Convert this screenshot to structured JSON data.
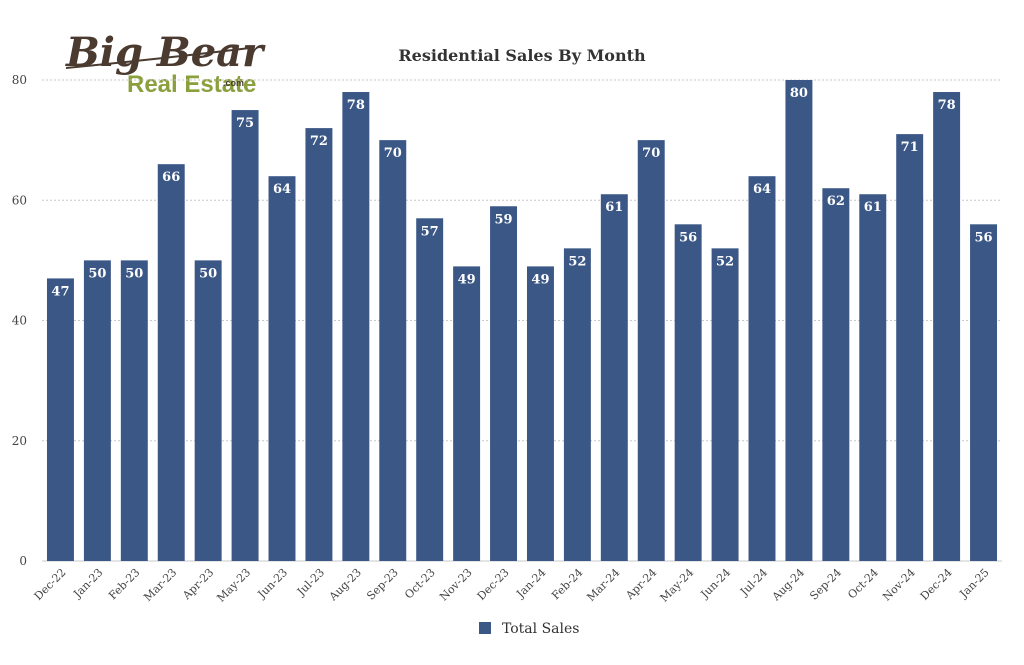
{
  "logo": {
    "line1": "Big Bear",
    "line2": "Real Estate",
    "suffix": ".com",
    "color_dark": "#4a3a30",
    "color_green": "#8aa03c"
  },
  "colors": {
    "bar": "#3b5786",
    "grid": "#c8c8c8",
    "axis_text": "#444444",
    "label": "#ffffff"
  },
  "chart_data": {
    "type": "bar",
    "title": "Residential Sales By Month",
    "categories": [
      "Dec-22",
      "Jan-23",
      "Feb-23",
      "Mar-23",
      "Apr-23",
      "May-23",
      "Jun-23",
      "Jul-23",
      "Aug-23",
      "Sep-23",
      "Oct-23",
      "Nov-23",
      "Dec-23",
      "Jan-24",
      "Feb-24",
      "Mar-24",
      "Apr-24",
      "May-24",
      "Jun-24",
      "Jul-24",
      "Aug-24",
      "Sep-24",
      "Oct-24",
      "Nov-24",
      "Dec-24",
      "Jan-25"
    ],
    "series": [
      {
        "name": "Total Sales",
        "values": [
          47,
          50,
          50,
          66,
          50,
          75,
          64,
          72,
          78,
          70,
          57,
          49,
          59,
          49,
          52,
          61,
          70,
          56,
          52,
          64,
          80,
          62,
          61,
          71,
          78,
          56
        ]
      }
    ],
    "ylim": [
      0,
      80
    ],
    "yticks": [
      0,
      20,
      40,
      60,
      80
    ],
    "grid": true,
    "legend_position": "bottom",
    "data_labels": true
  }
}
